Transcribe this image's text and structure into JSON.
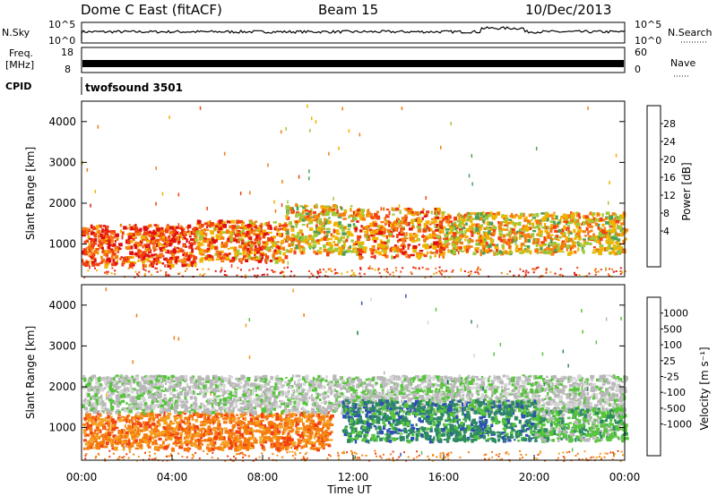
{
  "header": {
    "station": "Dome C East (fitACF)",
    "beam": "Beam 15",
    "date": "10/Dec/2013"
  },
  "status_panels": {
    "nsky_label": "N.Sky",
    "nsky_ticks": [
      "10^5",
      "10^0"
    ],
    "nsearch_label": "N.Search",
    "nsearch_ticks": [
      "10^5",
      "10^0"
    ],
    "freq_label_1": "Freq.",
    "freq_label_2": "[MHz]",
    "freq_ticks": [
      "18",
      "8"
    ],
    "nave_label": "Nave",
    "nave_ticks": [
      "60",
      "0"
    ],
    "cpid_label": "CPID",
    "cpid_value": "twofsound 3501"
  },
  "colors": {
    "power_scale": [
      "#1a1aff",
      "#2f4fb4",
      "#3c7a8a",
      "#4aa05a",
      "#9fc93a",
      "#f0b300",
      "#f57d10",
      "#f24010",
      "#e01010"
    ],
    "velocity_scale": [
      "#1a1aff",
      "#2f4fb4",
      "#2e8a63",
      "#55c53a",
      "#b8b8b8",
      "#d5d5d5",
      "#f5a020",
      "#f57d10",
      "#f24010",
      "#e01010"
    ]
  },
  "chart_data": [
    {
      "type": "heatmap",
      "name": "power",
      "xlabel": "",
      "ylabel": "Slant Range [km]",
      "yticks": [
        "1000",
        "2000",
        "3000",
        "4000"
      ],
      "ylim": [
        200,
        4500
      ],
      "xlim": [
        0,
        24
      ],
      "colorbar_label": "Power [dB]",
      "colorbar_ticks": [
        "4",
        "8",
        "12",
        "16",
        "20",
        "24",
        "28"
      ],
      "colorbar_range": [
        0,
        32
      ],
      "bands": [
        {
          "t0": 0.0,
          "t1": 5.0,
          "r0": 500,
          "r1": 1500,
          "level": 7
        },
        {
          "t0": 5.0,
          "t1": 9.0,
          "r0": 600,
          "r1": 1600,
          "level": 6
        },
        {
          "t0": 9.0,
          "t1": 12.0,
          "r0": 800,
          "r1": 2000,
          "level": 5
        },
        {
          "t0": 12.0,
          "t1": 16.0,
          "r0": 700,
          "r1": 1900,
          "level": 6
        },
        {
          "t0": 16.0,
          "t1": 24.0,
          "r0": 800,
          "r1": 1800,
          "level": 5
        }
      ]
    },
    {
      "type": "heatmap",
      "name": "velocity",
      "xlabel": "Time UT",
      "ylabel": "Slant Range [km]",
      "yticks": [
        "1000",
        "2000",
        "3000",
        "4000"
      ],
      "ylim": [
        200,
        4500
      ],
      "xticks": [
        "00:00",
        "04:00",
        "08:00",
        "12:00",
        "16:00",
        "20:00",
        "00:00"
      ],
      "xlim": [
        0,
        24
      ],
      "colorbar_label": "Velocity [m s⁻¹]",
      "colorbar_ticks": [
        "1000",
        "500",
        "100",
        "25",
        "-25",
        "-100",
        "-500",
        "-1000"
      ],
      "bands": [
        {
          "t0": 0.0,
          "t1": 11.0,
          "r0": 500,
          "r1": 1400,
          "velocity": -300
        },
        {
          "t0": 0.0,
          "t1": 24.0,
          "r0": 1400,
          "r1": 2300,
          "velocity": 0
        },
        {
          "t0": 11.5,
          "t1": 20.0,
          "r0": 700,
          "r1": 1700,
          "velocity": 100
        },
        {
          "t0": 20.0,
          "t1": 24.0,
          "r0": 700,
          "r1": 1500,
          "velocity": 150
        }
      ]
    }
  ]
}
